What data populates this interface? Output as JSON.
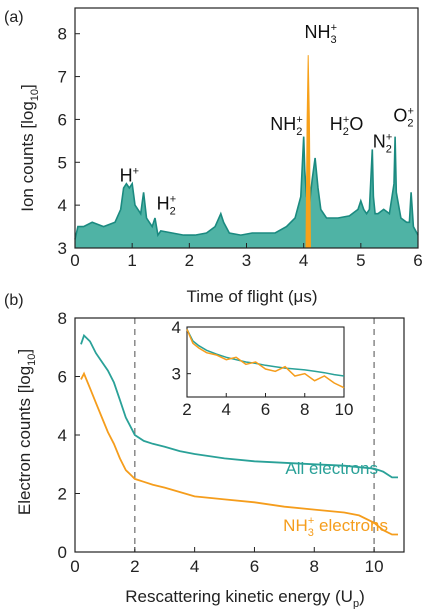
{
  "chart_data": [
    {
      "panel": "(a)",
      "type": "area",
      "xlabel": "Time of flight (μs)",
      "ylabel": "Ion counts [log",
      "ylabel_sub": "10",
      "ylabel_end": "]",
      "xlim": [
        0,
        6
      ],
      "ylim": [
        3,
        8.6
      ],
      "xticks": [
        0,
        1,
        2,
        3,
        4,
        5,
        6
      ],
      "yticks": [
        3,
        4,
        5,
        6,
        7,
        8
      ],
      "color_fill": "#4fb3a5",
      "color_line": "#1b8a80",
      "color_highlight": "#f7a11a",
      "series": [
        {
          "x": [
            0,
            0.05,
            0.15,
            0.3,
            0.5,
            0.7,
            0.8,
            0.85,
            0.9,
            0.95,
            1.0,
            1.05,
            1.1,
            1.15,
            1.2,
            1.25,
            1.3,
            1.35,
            1.4,
            1.45,
            1.5,
            1.7,
            1.9,
            2.1,
            2.3,
            2.45,
            2.55,
            2.6,
            2.7,
            2.9,
            3.1,
            3.3,
            3.5,
            3.7,
            3.85,
            3.95,
            4.0,
            4.02,
            4.05,
            4.1,
            4.15,
            4.2,
            4.25,
            4.3,
            4.4,
            4.6,
            4.8,
            4.95,
            5.0,
            5.05,
            5.1,
            5.15,
            5.2,
            5.22,
            5.25,
            5.3,
            5.4,
            5.5,
            5.58,
            5.6,
            5.62,
            5.7,
            5.8,
            5.85,
            5.88,
            5.92,
            6.0
          ],
          "y": [
            3.2,
            3.5,
            3.5,
            3.6,
            3.5,
            3.6,
            3.9,
            4.4,
            4.5,
            4.4,
            4.5,
            4.0,
            3.9,
            3.8,
            4.3,
            3.7,
            3.6,
            3.5,
            3.7,
            3.3,
            3.4,
            3.35,
            3.3,
            3.3,
            3.35,
            3.5,
            3.8,
            3.6,
            3.35,
            3.3,
            3.35,
            3.35,
            3.35,
            3.5,
            3.7,
            4.2,
            5.6,
            4.8,
            4.2,
            4.0,
            4.6,
            5.1,
            4.4,
            3.9,
            3.7,
            3.7,
            3.75,
            3.9,
            4.1,
            3.9,
            3.8,
            3.9,
            5.3,
            4.2,
            3.8,
            3.8,
            3.9,
            3.8,
            4.5,
            5.6,
            4.3,
            3.7,
            3.6,
            3.6,
            4.3,
            3.5,
            3.3
          ]
        },
        {
          "name": "NH3+ peak",
          "x": [
            4.04,
            4.06,
            4.08,
            4.1,
            4.12
          ],
          "y": [
            3.0,
            6.0,
            7.5,
            6.0,
            3.0
          ]
        }
      ],
      "peak_labels": [
        {
          "base": "H",
          "sup": "+",
          "sub": "",
          "x": 0.95,
          "y": 4.55
        },
        {
          "base": "H",
          "sup": "+",
          "sub": "2",
          "x": 1.6,
          "y": 3.9
        },
        {
          "base": "NH",
          "sup": "+",
          "sub": "2",
          "x": 3.7,
          "y": 5.75
        },
        {
          "base": "NH",
          "sup": "+",
          "sub": "3",
          "x": 4.3,
          "y": 7.9
        },
        {
          "base": "H",
          "sup": "+",
          "sub": "2",
          "tail": "O",
          "x": 4.75,
          "y": 5.75
        },
        {
          "base": "N",
          "sup": "+",
          "sub": "2",
          "x": 5.38,
          "y": 5.35
        },
        {
          "base": "O",
          "sup": "+",
          "sub": "2",
          "x": 5.75,
          "y": 5.95
        }
      ]
    },
    {
      "panel": "(b)",
      "type": "line",
      "xlabel": "Rescattering kinetic energy (U",
      "xlabel_sub": "p",
      "xlabel_end": ")",
      "ylabel": "Electron counts [log",
      "ylabel_sub": "10",
      "ylabel_end": "]",
      "xlim": [
        0,
        11
      ],
      "ylim": [
        0,
        8
      ],
      "xticks": [
        0,
        2,
        4,
        6,
        8,
        10
      ],
      "yticks": [
        0,
        2,
        4,
        6,
        8
      ],
      "dashed_lines_x": [
        2,
        10
      ],
      "series": [
        {
          "name": "All electrons",
          "color": "#2aa198",
          "x": [
            0.2,
            0.3,
            0.5,
            0.7,
            0.9,
            1.1,
            1.3,
            1.5,
            1.7,
            1.9,
            2.0,
            2.3,
            2.6,
            3.0,
            3.5,
            4.0,
            5.0,
            6.0,
            7.0,
            8.0,
            9.0,
            9.5,
            10.0,
            10.3,
            10.6,
            10.8
          ],
          "y": [
            7.1,
            7.4,
            7.2,
            6.8,
            6.5,
            6.2,
            5.8,
            5.2,
            4.6,
            4.2,
            4.0,
            3.8,
            3.7,
            3.6,
            3.45,
            3.35,
            3.2,
            3.1,
            3.05,
            3.0,
            2.95,
            2.9,
            2.85,
            2.75,
            2.55,
            2.55
          ]
        },
        {
          "name": "NH3+ electrons",
          "color": "#f59d1c",
          "x": [
            0.2,
            0.3,
            0.5,
            0.7,
            0.9,
            1.1,
            1.3,
            1.5,
            1.7,
            1.9,
            2.0,
            2.3,
            2.6,
            3.0,
            3.5,
            4.0,
            5.0,
            6.0,
            7.0,
            8.0,
            9.0,
            9.5,
            10.0,
            10.3,
            10.6,
            10.8
          ],
          "y": [
            5.9,
            6.1,
            5.6,
            5.1,
            4.6,
            4.1,
            3.7,
            3.2,
            2.8,
            2.6,
            2.5,
            2.4,
            2.3,
            2.2,
            2.05,
            1.9,
            1.8,
            1.7,
            1.55,
            1.45,
            1.35,
            1.25,
            1.0,
            0.75,
            0.6,
            0.6
          ]
        }
      ],
      "legend": [
        {
          "text": "All electrons",
          "color": "#2aa198"
        },
        {
          "text": "NH",
          "sup": "+",
          "sub": "3",
          "tail": " electrons",
          "color": "#f59d1c"
        }
      ],
      "inset": {
        "xlim": [
          2,
          10
        ],
        "ylim": [
          2.5,
          4
        ],
        "xticks": [
          2,
          4,
          6,
          8,
          10
        ],
        "yticks": [
          3,
          4
        ],
        "series": [
          {
            "color": "#2aa198",
            "x": [
              2.0,
              2.3,
              2.6,
              3.0,
              3.5,
              4.0,
              4.5,
              5.0,
              5.5,
              6.0,
              6.5,
              7.0,
              7.5,
              8.0,
              8.5,
              9.0,
              9.5,
              10.0
            ],
            "y": [
              3.95,
              3.7,
              3.6,
              3.5,
              3.42,
              3.35,
              3.3,
              3.25,
              3.22,
              3.18,
              3.15,
              3.12,
              3.1,
              3.08,
              3.05,
              3.02,
              2.98,
              2.95
            ]
          },
          {
            "color": "#f59d1c",
            "x": [
              2.0,
              2.3,
              2.6,
              3.0,
              3.5,
              4.0,
              4.5,
              5.0,
              5.5,
              6.0,
              6.5,
              7.0,
              7.5,
              8.0,
              8.5,
              9.0,
              9.5,
              10.0
            ],
            "y": [
              3.95,
              3.65,
              3.55,
              3.45,
              3.4,
              3.3,
              3.35,
              3.2,
              3.25,
              3.1,
              3.05,
              3.15,
              2.95,
              3.0,
              2.85,
              2.95,
              2.8,
              2.7
            ]
          }
        ]
      }
    }
  ]
}
